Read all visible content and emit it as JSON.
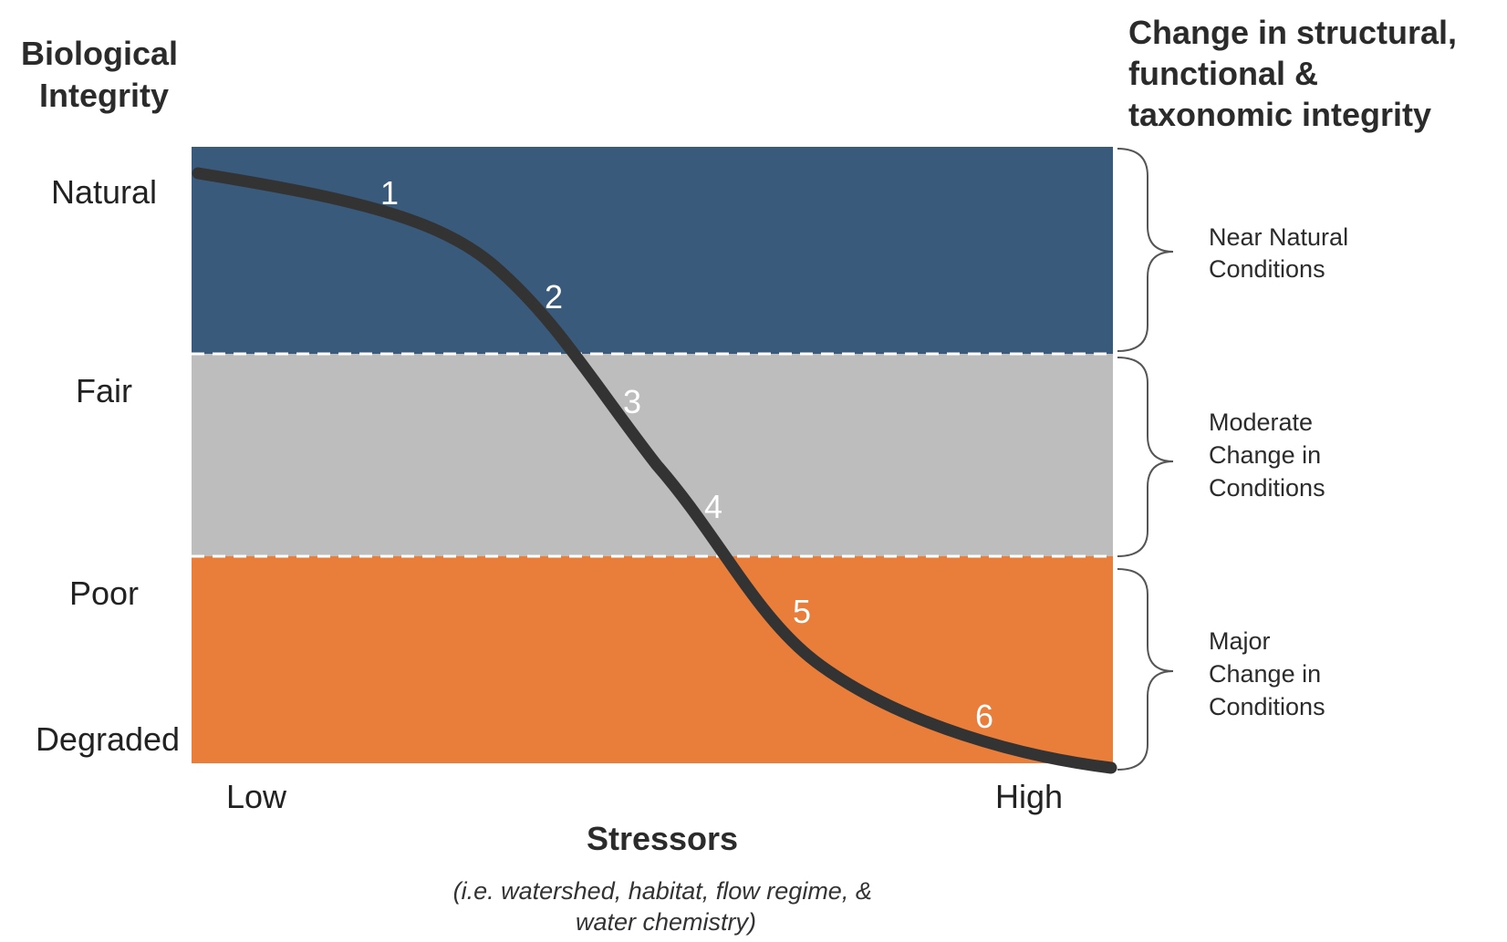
{
  "left_heading": [
    "Biological",
    "Integrity"
  ],
  "right_heading": [
    "Change in structural,",
    "functional &",
    "taxonomic integrity"
  ],
  "levels": [
    "Natural",
    "Fair",
    "Poor",
    "Degraded"
  ],
  "x_axis": {
    "low": "Low",
    "high": "High",
    "title": "Stressors",
    "note": [
      "(i.e. watershed, habitat, flow regime, &",
      "water chemistry)"
    ]
  },
  "zones": [
    {
      "lines": [
        "Near Natural",
        "Conditions"
      ],
      "color": "#3a5a7c"
    },
    {
      "lines": [
        "Moderate",
        "Change in",
        "Conditions"
      ],
      "color": "#bdbdbd"
    },
    {
      "lines": [
        "Major",
        "Change in",
        "Conditions"
      ],
      "color": "#e97d3a"
    }
  ],
  "curve_color": "#333333",
  "points": [
    "1",
    "2",
    "3",
    "4",
    "5",
    "6"
  ]
}
